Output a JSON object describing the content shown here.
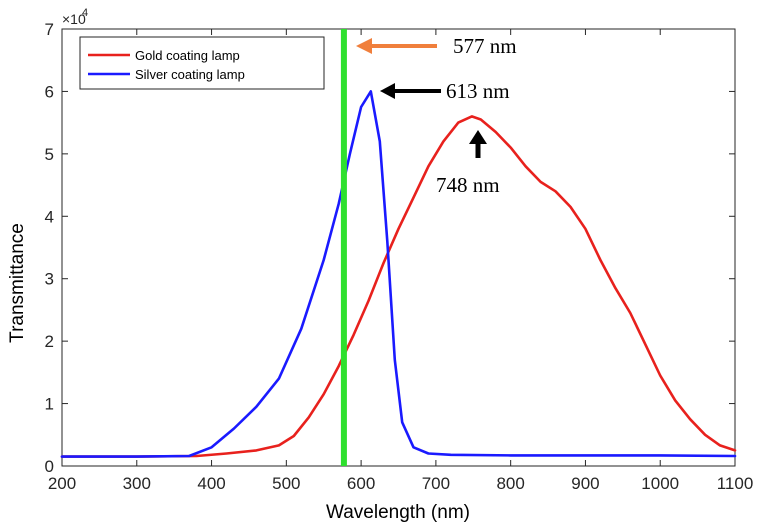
{
  "chart_data": {
    "type": "line",
    "title": "",
    "xlabel": "Wavelength (nm)",
    "ylabel": "Transmittance",
    "xlim": [
      200,
      1100
    ],
    "ylim": [
      0,
      7
    ],
    "x_ticks": [
      200,
      300,
      400,
      500,
      600,
      700,
      800,
      900,
      1000,
      1100
    ],
    "x_tick_labels": [
      "200",
      "300",
      "400",
      "500",
      "600",
      "700",
      "800",
      "900",
      "1000",
      "1100"
    ],
    "y_ticks": [
      0,
      1,
      2,
      3,
      4,
      5,
      6,
      7
    ],
    "y_tick_labels": [
      "0",
      "1",
      "2",
      "3",
      "4",
      "5",
      "6",
      "7"
    ],
    "y_exponent_base": "×10",
    "y_exponent_power": "4",
    "grid": false,
    "legend_position": "top-left",
    "series": [
      {
        "name": "Gold coating lamp",
        "color": "#e8211d",
        "x": [
          200,
          300,
          380,
          420,
          460,
          490,
          510,
          530,
          550,
          570,
          590,
          610,
          630,
          650,
          670,
          690,
          710,
          730,
          748,
          760,
          780,
          800,
          820,
          840,
          860,
          880,
          900,
          920,
          940,
          960,
          980,
          1000,
          1020,
          1040,
          1060,
          1080,
          1100
        ],
        "values": [
          0.15,
          0.15,
          0.16,
          0.2,
          0.25,
          0.33,
          0.48,
          0.78,
          1.15,
          1.6,
          2.1,
          2.65,
          3.25,
          3.8,
          4.3,
          4.8,
          5.2,
          5.5,
          5.6,
          5.55,
          5.35,
          5.1,
          4.8,
          4.55,
          4.4,
          4.15,
          3.8,
          3.3,
          2.85,
          2.45,
          1.95,
          1.45,
          1.05,
          0.75,
          0.5,
          0.33,
          0.25
        ]
      },
      {
        "name": "Silver coating lamp",
        "color": "#1a1aff",
        "x": [
          200,
          300,
          370,
          400,
          430,
          460,
          490,
          520,
          550,
          570,
          585,
          600,
          613,
          625,
          635,
          645,
          655,
          670,
          690,
          720,
          800,
          900,
          1000,
          1100
        ],
        "values": [
          0.15,
          0.15,
          0.16,
          0.3,
          0.6,
          0.95,
          1.4,
          2.2,
          3.3,
          4.2,
          5.0,
          5.75,
          6.0,
          5.2,
          3.6,
          1.7,
          0.7,
          0.3,
          0.2,
          0.18,
          0.17,
          0.17,
          0.17,
          0.16
        ]
      }
    ],
    "vertical_marker": {
      "x": 577,
      "color": "#2ee02e"
    },
    "annotations": [
      {
        "text": "577 nm",
        "arrow_color": "#f07f3c"
      },
      {
        "text": "613 nm",
        "arrow_color": "#000000"
      },
      {
        "text": "748 nm",
        "arrow_color": "#000000"
      }
    ]
  }
}
